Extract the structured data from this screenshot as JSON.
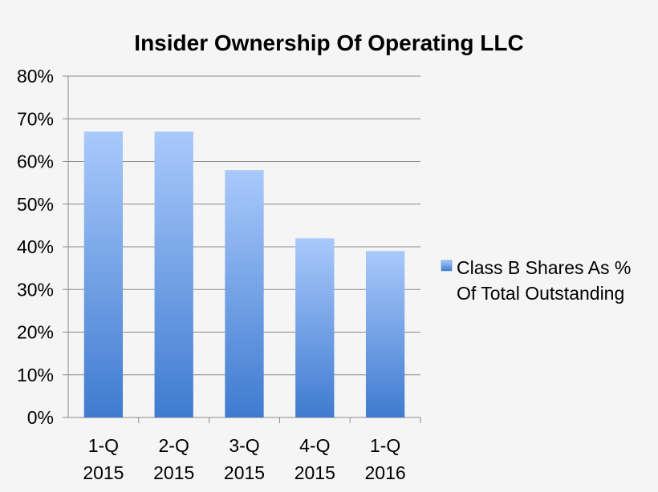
{
  "chart_data": {
    "type": "bar",
    "title": "Insider Ownership Of Operating LLC",
    "xlabel": "",
    "ylabel": "",
    "categories": [
      [
        "1-Q",
        "2015"
      ],
      [
        "2-Q",
        "2015"
      ],
      [
        "3-Q",
        "2015"
      ],
      [
        "4-Q",
        "2015"
      ],
      [
        "1-Q",
        "2016"
      ]
    ],
    "series": [
      {
        "name_lines": [
          "Class B Shares As %",
          "Of Total Outstanding"
        ],
        "values": [
          67,
          67,
          58,
          42,
          39
        ]
      }
    ],
    "ylim": [
      0,
      80
    ],
    "yticks": [
      "0%",
      "10%",
      "20%",
      "30%",
      "40%",
      "50%",
      "60%",
      "70%",
      "80%"
    ],
    "grid": true,
    "legend": "right",
    "colors": {
      "bar_top": "#a9c9fb",
      "bar_bottom": "#3f7bd0",
      "grid": "#8a8a8a",
      "axis": "#8a8a8a",
      "background": "#f5f5f5"
    }
  }
}
